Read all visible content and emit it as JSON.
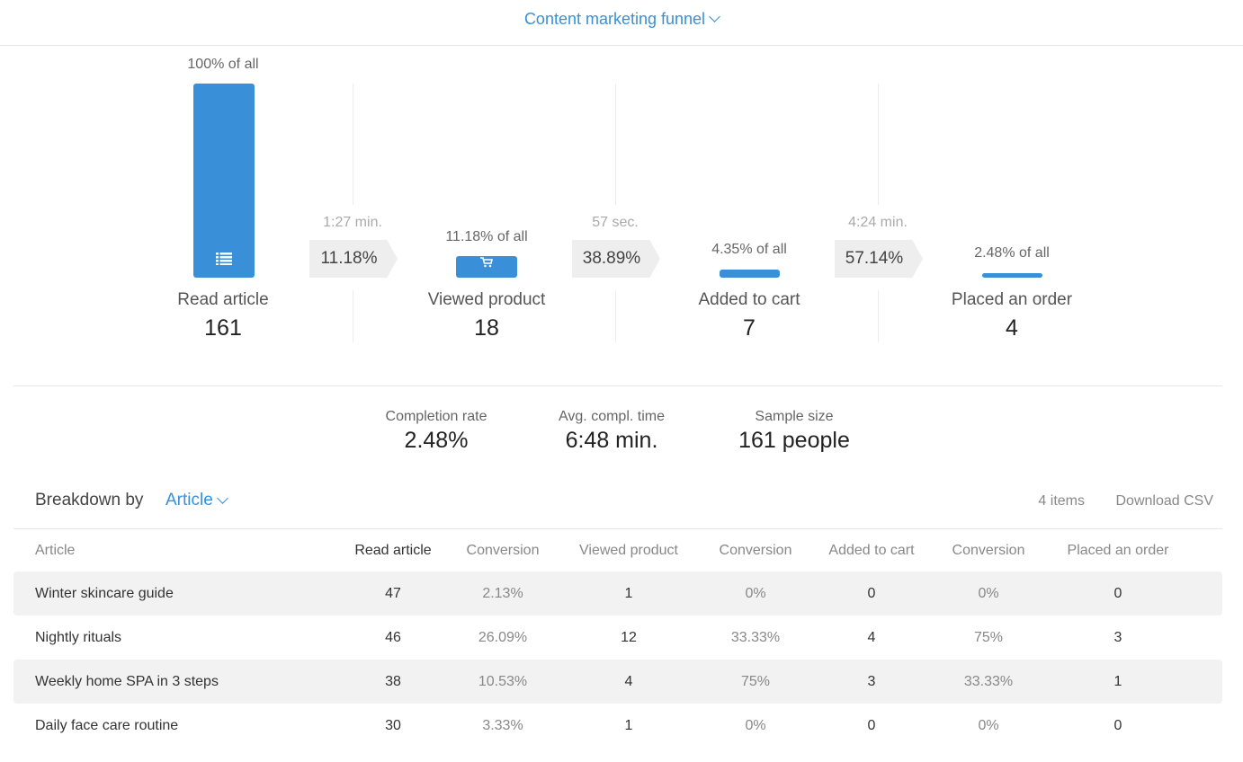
{
  "header": {
    "title": "Content marketing funnel"
  },
  "funnel": {
    "stages": [
      {
        "name": "Read article",
        "count": "161",
        "pct": "100% of all",
        "share": 1.0,
        "icon": "list-icon"
      },
      {
        "name": "Viewed product",
        "count": "18",
        "pct": "11.18% of all",
        "share": 0.1118,
        "icon": "cart-icon"
      },
      {
        "name": "Added to cart",
        "count": "7",
        "pct": "4.35% of all",
        "share": 0.0435
      },
      {
        "name": "Placed an order",
        "count": "4",
        "pct": "2.48% of all",
        "share": 0.0248
      }
    ],
    "transitions": [
      {
        "time": "1:27 min.",
        "conversion": "11.18%"
      },
      {
        "time": "57 sec.",
        "conversion": "38.89%"
      },
      {
        "time": "4:24 min.",
        "conversion": "57.14%"
      }
    ]
  },
  "summary": {
    "completion_rate": {
      "label": "Completion rate",
      "value": "2.48%"
    },
    "avg_time": {
      "label": "Avg. compl. time",
      "value": "6:48 min."
    },
    "sample_size": {
      "label": "Sample size",
      "value": "161 people"
    }
  },
  "breakdown": {
    "label": "Breakdown by",
    "selected": "Article",
    "count": "4 items",
    "download": "Download CSV"
  },
  "table": {
    "headers": [
      "Article",
      "Read article",
      "Conversion",
      "Viewed product",
      "Conversion",
      "Added to cart",
      "Conversion",
      "Placed an order"
    ],
    "rows": [
      [
        "Winter skincare guide",
        "47",
        "2.13%",
        "1",
        "0%",
        "0",
        "0%",
        "0"
      ],
      [
        "Nightly rituals",
        "46",
        "26.09%",
        "12",
        "33.33%",
        "4",
        "75%",
        "3"
      ],
      [
        "Weekly home SPA in 3 steps",
        "38",
        "10.53%",
        "4",
        "75%",
        "3",
        "33.33%",
        "1"
      ],
      [
        "Daily face care routine",
        "30",
        "3.33%",
        "1",
        "0%",
        "0",
        "0%",
        "0"
      ]
    ]
  },
  "colors": {
    "accent": "#3a8fd9",
    "row_alt": "#f2f2f2"
  }
}
